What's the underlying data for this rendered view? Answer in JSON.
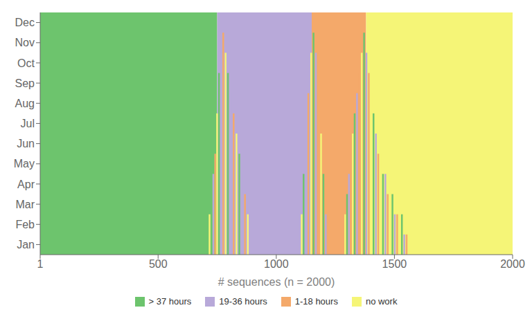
{
  "chart_data": {
    "type": "spike",
    "xlabel": "# sequences (n = 2000)",
    "xlim": [
      1,
      2000
    ],
    "xticks": [
      1,
      500,
      1000,
      1500,
      2000
    ],
    "ylim": [
      0.5,
      12.5
    ],
    "yticks": [
      {
        "value": 1,
        "label": "Jan"
      },
      {
        "value": 2,
        "label": "Feb"
      },
      {
        "value": 3,
        "label": "Mar"
      },
      {
        "value": 4,
        "label": "Apr"
      },
      {
        "value": 5,
        "label": "May"
      },
      {
        "value": 6,
        "label": "Jun"
      },
      {
        "value": 7,
        "label": "Jul"
      },
      {
        "value": 8,
        "label": "Aug"
      },
      {
        "value": 9,
        "label": "Sep"
      },
      {
        "value": 10,
        "label": "Oct"
      },
      {
        "value": 11,
        "label": "Nov"
      },
      {
        "value": 12,
        "label": "Dec"
      }
    ],
    "legend": "bottom",
    "grid": false,
    "bands": [
      {
        "name": "> 37 hours",
        "color": "#6dc46d",
        "start": 1,
        "end": 750
      },
      {
        "name": "19-36 hours",
        "color": "#b8a9d9",
        "start": 750,
        "end": 1150
      },
      {
        "name": "1-18 hours",
        "color": "#f4a96a",
        "start": 1150,
        "end": 1380
      },
      {
        "name": "no work",
        "color": "#f5f577",
        "start": 1380,
        "end": 2000
      }
    ],
    "spikes": [
      {
        "x": [
          718,
          726,
          734,
          742,
          750,
          758,
          768,
          776,
          786,
          796,
          808,
          820,
          832,
          844,
          856,
          868,
          880
        ],
        "colors": [
          "#f5f577",
          "#6dc46d",
          "#b8a9d9",
          "#f4a96a",
          "#f5f577",
          "#6dc46d",
          "#b8a9d9",
          "#f4a96a",
          "#f5f577",
          "#6dc46d",
          "#b8a9d9",
          "#f4a96a",
          "#f5f577",
          "#6dc46d",
          "#b8a9d9",
          "#f4a96a",
          "#f5f577"
        ],
        "values": [
          2,
          3,
          4,
          5,
          7,
          9,
          10,
          11,
          10,
          9,
          8,
          7,
          6,
          5,
          4,
          3,
          2
        ]
      },
      {
        "x": [
          1108,
          1116,
          1126,
          1136,
          1148,
          1158,
          1168,
          1178,
          1190,
          1200,
          1210
        ],
        "colors": [
          "#f5f577",
          "#6dc46d",
          "#b8a9d9",
          "#f4a96a",
          "#f5f577",
          "#6dc46d",
          "#b8a9d9",
          "#f4a96a",
          "#f5f577",
          "#6dc46d",
          "#b8a9d9"
        ],
        "values": [
          2,
          4,
          6,
          8,
          10,
          11,
          10,
          8,
          6,
          4,
          2
        ]
      },
      {
        "x": [
          1292,
          1300,
          1308,
          1316,
          1324,
          1332,
          1342,
          1352,
          1362,
          1372,
          1382,
          1392,
          1402,
          1412,
          1422,
          1432,
          1442,
          1452,
          1462,
          1472,
          1482,
          1492,
          1502,
          1512,
          1522,
          1532,
          1542,
          1552,
          1562
        ],
        "colors": [
          "#f5f577",
          "#6dc46d",
          "#b8a9d9",
          "#f4a96a",
          "#f5f577",
          "#6dc46d",
          "#b8a9d9",
          "#f4a96a",
          "#f5f577",
          "#6dc46d",
          "#b8a9d9",
          "#f4a96a",
          "#f5f577",
          "#6dc46d",
          "#b8a9d9",
          "#f4a96a",
          "#f5f577",
          "#6dc46d",
          "#b8a9d9",
          "#f4a96a",
          "#f5f577",
          "#6dc46d",
          "#b8a9d9",
          "#f4a96a",
          "#f5f577",
          "#6dc46d",
          "#b8a9d9",
          "#f4a96a",
          "#f5f577"
        ],
        "values": [
          2,
          3,
          4,
          5,
          6,
          7,
          8,
          9,
          10,
          11,
          10,
          9,
          8,
          7,
          6,
          5,
          5,
          4,
          4,
          3,
          3,
          3,
          2,
          2,
          2,
          2,
          1,
          1,
          1
        ]
      }
    ]
  }
}
